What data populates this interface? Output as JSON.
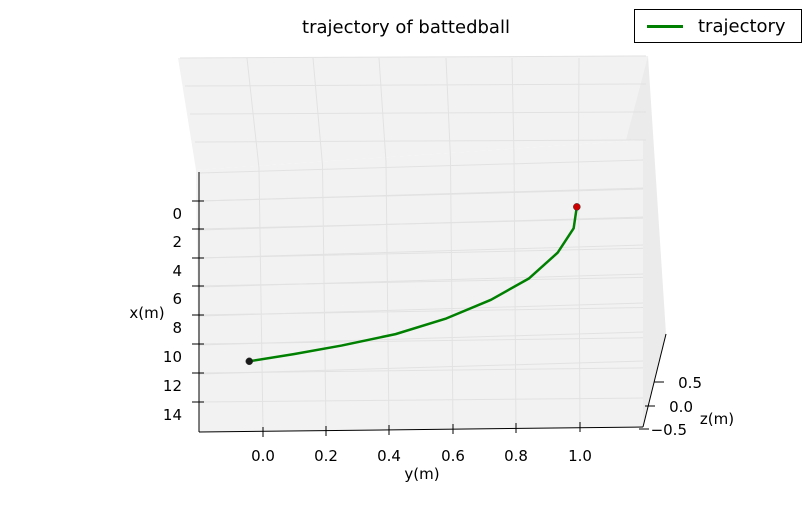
{
  "chart_data": {
    "type": "line",
    "projection": "3d",
    "title": "trajectory of battedball",
    "xlabel": "x(m)",
    "ylabel": "y(m)",
    "zlabel": "z(m)",
    "x_ticks": [
      "0",
      "2",
      "4",
      "6",
      "8",
      "10",
      "12",
      "14"
    ],
    "y_ticks": [
      "0.0",
      "0.2",
      "0.4",
      "0.6",
      "0.8",
      "1.0"
    ],
    "z_ticks": [
      "0.5",
      "0.0",
      "−0.5"
    ],
    "xlim": [
      -2,
      16
    ],
    "ylim": [
      -0.05,
      1.2
    ],
    "zlim": [
      -0.6,
      0.6
    ],
    "grid": true,
    "legend_position": "top-right",
    "series": [
      {
        "name": "trajectory",
        "color": "#008000",
        "points": [
          {
            "x": 10.3,
            "y": -0.04
          },
          {
            "x": 9.8,
            "y": 0.1
          },
          {
            "x": 9.2,
            "y": 0.25
          },
          {
            "x": 8.4,
            "y": 0.42
          },
          {
            "x": 7.3,
            "y": 0.58
          },
          {
            "x": 6.0,
            "y": 0.72
          },
          {
            "x": 4.5,
            "y": 0.84
          },
          {
            "x": 2.7,
            "y": 0.93
          },
          {
            "x": 1.0,
            "y": 0.98
          },
          {
            "x": -0.5,
            "y": 0.99
          }
        ]
      }
    ],
    "markers": [
      {
        "name": "start",
        "color": "#1a1a1a",
        "x": 10.3,
        "y": -0.04
      },
      {
        "name": "end",
        "color": "#cc0000",
        "x": -0.5,
        "y": 0.99
      }
    ]
  }
}
